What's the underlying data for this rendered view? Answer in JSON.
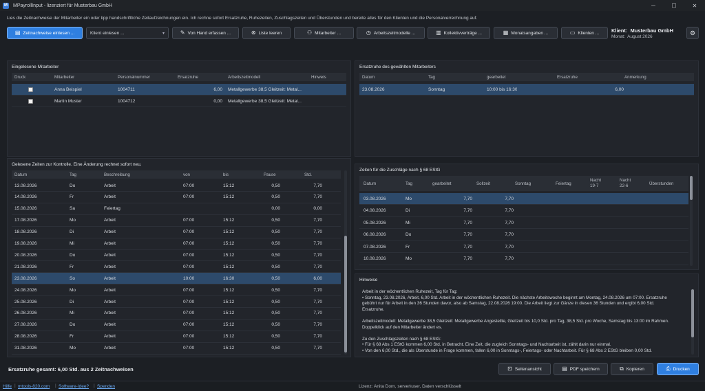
{
  "window": {
    "title": "MPayrollInput - lizenziert für Musterbau GmbH",
    "minimize": "─",
    "maximize": "☐",
    "close": "✕"
  },
  "intro": "Lies die Zeitnachweise der Mitarbeiter ein oder tipp handschriftliche Zeitaufzeichnungen ein. Ich rechne sofort Ersatzruhe, Ruhezeiten, Zuschlagszeiten und Überstunden und bereite alles für den Klienten und die Personalverrechnung auf.",
  "toolbar": {
    "read_timesheets": "Zeitnachweise einlesen ...",
    "client_read": "Klient einlesen ...",
    "manual_entry": "Von Hand erfassen ...",
    "clear_list": "Liste leeren",
    "employees": "Mitarbeiter ...",
    "work_models": "Arbeitszeitmodelle ...",
    "collective": "Kollektivverträge ...",
    "monthly": "Monatsangaben ...",
    "clients": "Klienten ..."
  },
  "client": {
    "label": "Klient:",
    "name": "Musterbau GmbH",
    "month_label": "Monat:",
    "month": "August 2026"
  },
  "employees": {
    "title": "Eingelesene Mitarbeiter",
    "headers": [
      "Druck",
      "Mitarbeiter",
      "Personalnummer",
      "Ersatzruhe",
      "Arbeitszeitmodell",
      "Hinweis"
    ],
    "rows": [
      {
        "name": "Anna Beispiel",
        "nr": "1004711",
        "ersatz": "6,00",
        "model": "Metallgewerbe 38,5 Gleitzeit: Metal...",
        "hint": ""
      },
      {
        "name": "Martin Muster",
        "nr": "1004712",
        "ersatz": "0,00",
        "model": "Metallgewerbe 38,5 Gleitzeit: Metal...",
        "hint": ""
      }
    ]
  },
  "ersatzruhe": {
    "title": "Ersatzruhe des gewählten Mitarbeiters",
    "headers": [
      "Datum",
      "Tag",
      "gearbeitet",
      "Ersatzruhe",
      "Anmerkung"
    ],
    "rows": [
      {
        "date": "23.08.2026",
        "day": "Sonntag",
        "worked": "10:00 bis 16:30",
        "rest": "6,00",
        "note": ""
      }
    ]
  },
  "times": {
    "title": "Gelesene Zeiten zur Kontrolle. Eine Änderung rechnet sofort neu.",
    "headers": [
      "Datum",
      "Tag",
      "Beschreibung",
      "von",
      "bis",
      "Pause",
      "Std."
    ],
    "rows": [
      {
        "d": "13.08.2026",
        "t": "Do",
        "b": "Arbeit",
        "von": "07:00",
        "bis": "15:12",
        "p": "0,50",
        "s": "7,70"
      },
      {
        "d": "14.08.2026",
        "t": "Fr",
        "b": "Arbeit",
        "von": "07:00",
        "bis": "15:12",
        "p": "0,50",
        "s": "7,70"
      },
      {
        "d": "15.08.2026",
        "t": "Sa",
        "b": "Feiertag",
        "von": "",
        "bis": "",
        "p": "0,00",
        "s": "0,00"
      },
      {
        "d": "17.08.2026",
        "t": "Mo",
        "b": "Arbeit",
        "von": "07:00",
        "bis": "15:12",
        "p": "0,50",
        "s": "7,70"
      },
      {
        "d": "18.08.2026",
        "t": "Di",
        "b": "Arbeit",
        "von": "07:00",
        "bis": "15:12",
        "p": "0,50",
        "s": "7,70"
      },
      {
        "d": "19.08.2026",
        "t": "Mi",
        "b": "Arbeit",
        "von": "07:00",
        "bis": "15:12",
        "p": "0,50",
        "s": "7,70"
      },
      {
        "d": "20.08.2026",
        "t": "Do",
        "b": "Arbeit",
        "von": "07:00",
        "bis": "15:12",
        "p": "0,50",
        "s": "7,70"
      },
      {
        "d": "21.08.2026",
        "t": "Fr",
        "b": "Arbeit",
        "von": "07:00",
        "bis": "15:12",
        "p": "0,50",
        "s": "7,70"
      },
      {
        "d": "23.08.2026",
        "t": "So",
        "b": "Arbeit",
        "von": "10:00",
        "bis": "16:30",
        "p": "0,50",
        "s": "6,00"
      },
      {
        "d": "24.08.2026",
        "t": "Mo",
        "b": "Arbeit",
        "von": "07:00",
        "bis": "15:12",
        "p": "0,50",
        "s": "7,70"
      },
      {
        "d": "25.08.2026",
        "t": "Di",
        "b": "Arbeit",
        "von": "07:00",
        "bis": "15:12",
        "p": "0,50",
        "s": "7,70"
      },
      {
        "d": "26.08.2026",
        "t": "Mi",
        "b": "Arbeit",
        "von": "07:00",
        "bis": "15:12",
        "p": "0,50",
        "s": "7,70"
      },
      {
        "d": "27.08.2026",
        "t": "Do",
        "b": "Arbeit",
        "von": "07:00",
        "bis": "15:12",
        "p": "0,50",
        "s": "7,70"
      },
      {
        "d": "28.08.2026",
        "t": "Fr",
        "b": "Arbeit",
        "von": "07:00",
        "bis": "15:12",
        "p": "0,50",
        "s": "7,70"
      },
      {
        "d": "31.08.2026",
        "t": "Mo",
        "b": "Arbeit",
        "von": "07:00",
        "bis": "15:12",
        "p": "0,50",
        "s": "7,70"
      }
    ]
  },
  "surcharges": {
    "title": "Zeiten für die Zuschläge nach § 68 EStG",
    "headers": [
      "Datum",
      "Tag",
      "gearbeitet",
      "Sollzeit",
      "Sonntag",
      "Feiertag",
      "Nacht\n19-7",
      "Nacht\n22-6",
      "Überstunden"
    ],
    "rows": [
      {
        "d": "03.08.2026",
        "t": "Mo",
        "g": "7,70",
        "s": "7,70"
      },
      {
        "d": "04.08.2026",
        "t": "Di",
        "g": "7,70",
        "s": "7,70"
      },
      {
        "d": "05.08.2026",
        "t": "Mi",
        "g": "7,70",
        "s": "7,70"
      },
      {
        "d": "06.08.2026",
        "t": "Do",
        "g": "7,70",
        "s": "7,70"
      },
      {
        "d": "07.08.2026",
        "t": "Fr",
        "g": "7,70",
        "s": "7,70"
      },
      {
        "d": "10.08.2026",
        "t": "Mo",
        "g": "7,70",
        "s": "7,70"
      },
      {
        "d": "11.08.2026",
        "t": "Di",
        "g": "7,70",
        "s": "7,70"
      }
    ]
  },
  "hints": {
    "title": "Hinweise",
    "text": "Arbeit in der wöchentlichen Ruhezeit, Tag für Tag:\n• Sonntag, 23.08.2026, Arbeit, 6,00 Std. Arbeit in der wöchentlichen Ruhezeit. Die nächste Arbeitswoche beginnt am Montag, 24.08.2026 um 07:00. Ersatzruhe\ngebührt nur für Arbeit in den 36 Stunden davor, also ab Samstag, 22.08.2026 19:00. Die Arbeit liegt zur Gänze in diesen 36 Stunden und ergibt 6,00 Std.\nErsatzruhe.\n\nArbeitszeitmodell: Metallgewerbe 38,5 Gleitzeit: Metallgewerbe Angestellte, Gleitzeit bis 10,0 Std. pro Tag, 38,5 Std. pro Woche, Samstag bis 13:00 im Rahmen.\nDoppelklick auf den Mitarbeiter ändert es.\n\nZu den Zuschlagszeiten nach § 68 EStG:\n• Für § 68 Abs 1 EStG kommen 6,00 Std. in Betracht. Eine Zeit, die zugleich Sonntags- und Nachtarbeit ist, zählt darin nur einmal.\n• Von den 6,00 Std., die als Überstunde in Frage kommen, fallen 6,00 in Sonntags-, Feiertags- oder Nachtarbeit. Für § 68 Abs 2 EStG bleiben 0,00 Std."
  },
  "footer": {
    "total": "Ersatzruhe gesamt: 6,00 Std. aus 2 Zeitnachweisen",
    "preview": "Seitenansicht",
    "pdf": "PDF speichern",
    "copy": "Kopieren",
    "print": "Drucken"
  },
  "status": {
    "help": "Hilfe",
    "site": "mtools-820.com",
    "idea": "Software-Idee?",
    "donate": "Spenden",
    "license": "Lizenz: Anita Dorn, server\\user, Daten verschlüsselt"
  }
}
